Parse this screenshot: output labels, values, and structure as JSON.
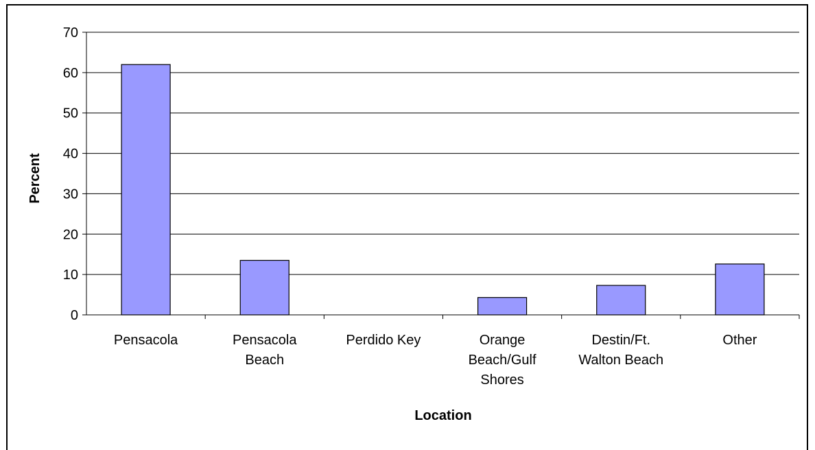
{
  "chart_data": {
    "type": "bar",
    "title": "",
    "xlabel": "Location",
    "ylabel": "Percent",
    "categories": [
      [
        "Pensacola"
      ],
      [
        "Pensacola",
        "Beach"
      ],
      [
        "Perdido Key"
      ],
      [
        "Orange",
        "Beach/Gulf",
        "Shores"
      ],
      [
        "Destin/Ft.",
        "Walton Beach"
      ],
      [
        "Other"
      ]
    ],
    "values": [
      62,
      13.5,
      0,
      4.3,
      7.3,
      12.6
    ],
    "ylim": [
      0,
      70
    ],
    "yticks": [
      0,
      10,
      20,
      30,
      40,
      50,
      60,
      70
    ],
    "grid": true,
    "legend": "none",
    "colors": {
      "bar_fill": "#9999ff",
      "bar_stroke": "#000000",
      "gridline": "#000000",
      "background": "#ffffff"
    }
  }
}
